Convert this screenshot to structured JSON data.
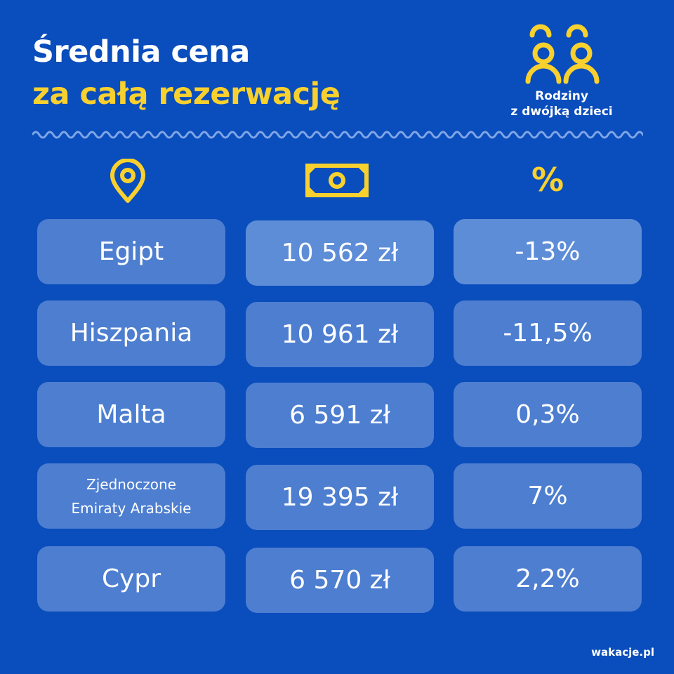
{
  "title": {
    "line1": "Średnia cena",
    "line2": "za całą rezerwację"
  },
  "badge": {
    "label_line1": "Rodziny",
    "label_line2": "z dwójką dzieci",
    "icon": "family-icon"
  },
  "columns": {
    "location_icon": "location-pin-icon",
    "price_icon": "money-bill-icon",
    "percent_icon": "%"
  },
  "rows": [
    {
      "country": "Egipt",
      "price": "10 562 zł",
      "change": "-13%"
    },
    {
      "country": "Hiszpania",
      "price": "10 961 zł",
      "change": "-11,5%"
    },
    {
      "country": "Malta",
      "price": "6 591 zł",
      "change": "0,3%"
    },
    {
      "country": "Zjednoczone Emiraty Arabskie",
      "country_line1": "Zjednoczone",
      "country_line2": "Emiraty Arabskie",
      "price": "19 395 zł",
      "change": "7%"
    },
    {
      "country": "Cypr",
      "price": "6 570 zł",
      "change": "2,2%"
    }
  ],
  "brand": "wakacje.pl",
  "colors": {
    "background": "#0a4dbc",
    "accent": "#f9d12e",
    "cell": "#4d7ed0"
  }
}
